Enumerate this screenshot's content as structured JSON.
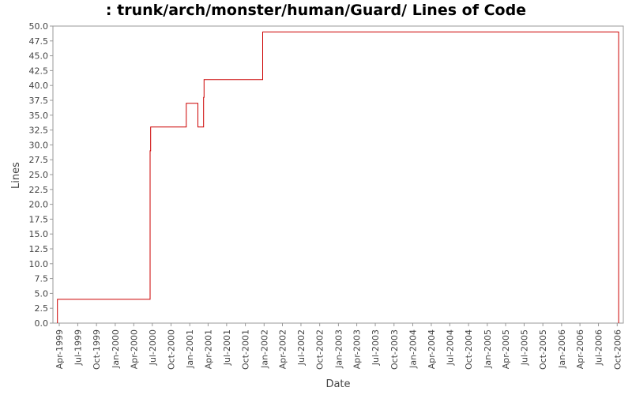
{
  "chart_data": {
    "type": "line",
    "title": ": trunk/arch/monster/human/Guard/ Lines of Code",
    "xlabel": "Date",
    "ylabel": "Lines",
    "ylim": [
      0,
      50
    ],
    "xlim": [
      "1999-03-01",
      "2006-10-31"
    ],
    "grid": false,
    "line_color": "#cc0000",
    "y_ticks": [
      "0.0",
      "2.5",
      "5.0",
      "7.5",
      "10.0",
      "12.5",
      "15.0",
      "17.5",
      "20.0",
      "22.5",
      "25.0",
      "27.5",
      "30.0",
      "32.5",
      "35.0",
      "37.5",
      "40.0",
      "42.5",
      "45.0",
      "47.5",
      "50.0"
    ],
    "x_ticks": [
      "Apr-1999",
      "Jul-1999",
      "Oct-1999",
      "Jan-2000",
      "Apr-2000",
      "Jul-2000",
      "Oct-2000",
      "Jan-2001",
      "Apr-2001",
      "Jul-2001",
      "Oct-2001",
      "Jan-2002",
      "Apr-2002",
      "Jul-2002",
      "Oct-2002",
      "Jan-2003",
      "Apr-2003",
      "Jul-2003",
      "Oct-2003",
      "Jan-2004",
      "Apr-2004",
      "Jul-2004",
      "Oct-2004",
      "Jan-2005",
      "Apr-2005",
      "Jul-2005",
      "Oct-2005",
      "Jan-2006",
      "Apr-2006",
      "Jul-2006",
      "Oct-2006"
    ],
    "series": [
      {
        "x": [
          "1999-03-23",
          "1999-03-23",
          "2000-06-20",
          "2000-06-20",
          "2000-06-23",
          "2000-06-23",
          "2000-12-15",
          "2000-12-15",
          "2001-02-10",
          "2001-02-10",
          "2001-03-10",
          "2001-03-10",
          "2001-03-12",
          "2001-03-12",
          "2001-12-25",
          "2001-12-25",
          "2006-10-08",
          "2006-10-08"
        ],
        "y": [
          0,
          4,
          4,
          29,
          29,
          33,
          33,
          37,
          37,
          33,
          33,
          38,
          38,
          41,
          41,
          49,
          49,
          0
        ]
      }
    ]
  }
}
